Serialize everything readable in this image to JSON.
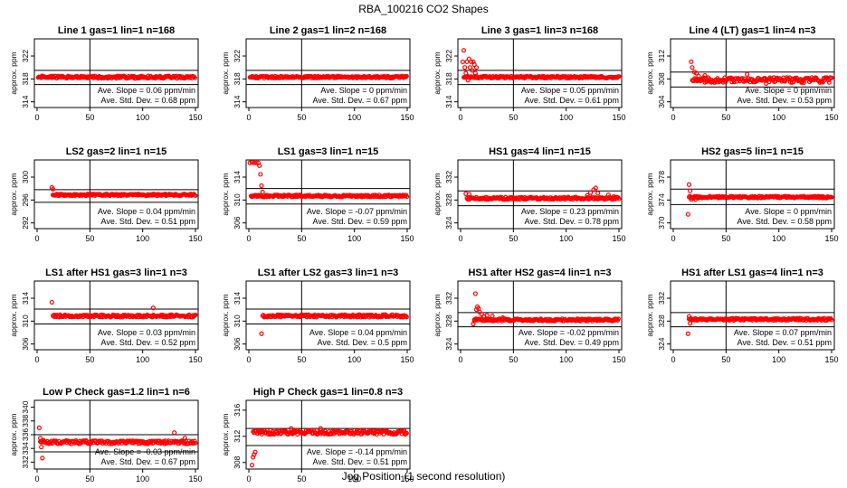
{
  "figure": {
    "title": "RBA_100216  CO2 Shapes",
    "x_title": "Jog Position (1 second resolution)"
  },
  "chart_data": [
    {
      "type": "scatter",
      "title": "Line 1 gas=1 lin=1 n=168",
      "ylabel": "approx. ppm",
      "xlim": [
        0,
        150
      ],
      "ylim": [
        313,
        325
      ],
      "xticks": [
        0,
        50,
        100,
        150
      ],
      "yticks": [
        314,
        318,
        322
      ],
      "hlines": [
        319.5,
        317.0
      ],
      "vline": 50,
      "baseline": 318.3,
      "noise": 0.22,
      "outliers": [],
      "slope_text": "Ave. Slope = 0.06 ppm/min",
      "std_text": "Ave. Std. Dev. = 0.68 ppm"
    },
    {
      "type": "scatter",
      "title": "Line 2 gas=1 lin=2 n=168",
      "ylabel": "approx. ppm",
      "xlim": [
        0,
        150
      ],
      "ylim": [
        313,
        325
      ],
      "xticks": [
        0,
        50,
        100,
        150
      ],
      "yticks": [
        314,
        318,
        322
      ],
      "hlines": [
        319.5,
        317.0
      ],
      "vline": 50,
      "baseline": 318.3,
      "noise": 0.18,
      "outliers": [],
      "slope_text": "Ave. Slope = 0 ppm/min",
      "std_text": "Ave. Std. Dev. = 0.67 ppm"
    },
    {
      "type": "scatter",
      "title": "Line 3 gas=1 lin=3 n=168",
      "ylabel": "approx. ppm",
      "xlim": [
        0,
        150
      ],
      "ylim": [
        313,
        325
      ],
      "xticks": [
        0,
        50,
        100,
        150
      ],
      "yticks": [
        314,
        318,
        322
      ],
      "hlines": [
        319.5,
        317.0
      ],
      "vline": 50,
      "baseline": 318.3,
      "noise": 0.18,
      "outliers": [
        [
          2,
          321
        ],
        [
          3,
          323
        ],
        [
          4,
          320
        ],
        [
          5,
          319
        ],
        [
          6,
          321
        ],
        [
          7,
          317.8
        ],
        [
          8,
          321.5
        ],
        [
          9,
          320
        ],
        [
          10,
          321
        ],
        [
          11,
          319.5
        ],
        [
          12,
          321
        ],
        [
          13,
          320.5
        ],
        [
          14,
          319
        ],
        [
          15,
          320
        ]
      ],
      "slope_text": "Ave. Slope = 0.05 ppm/min",
      "std_text": "Ave. Std. Dev. = 0.61 ppm"
    },
    {
      "type": "scatter",
      "title": "Line 4 (LT) gas=1 lin=4 n=3",
      "ylabel": "approx. ppm",
      "xlim": [
        0,
        150
      ],
      "ylim": [
        303,
        315
      ],
      "xticks": [
        0,
        50,
        100,
        150
      ],
      "yticks": [
        304,
        308,
        312
      ],
      "hlines": [
        309.2,
        306.6
      ],
      "vline": 50,
      "baseline": 307.8,
      "noise": 0.45,
      "outliers": [
        [
          17,
          311
        ],
        [
          18,
          310
        ],
        [
          20,
          309.2
        ],
        [
          22,
          309
        ],
        [
          24,
          308.5
        ],
        [
          30,
          308.6
        ],
        [
          70,
          308.8
        ],
        [
          88,
          307.2
        ]
      ],
      "slope_text": "Ave. Slope = 0 ppm/min",
      "std_text": "Ave. Std. Dev. = 0.53 ppm"
    },
    {
      "type": "scatter",
      "title": "LS2 gas=2 lin=1 n=15",
      "ylabel": "approx. ppm",
      "xlim": [
        0,
        150
      ],
      "ylim": [
        291,
        303
      ],
      "xticks": [
        0,
        50,
        100,
        150
      ],
      "yticks": [
        292,
        296,
        300
      ],
      "hlines": [
        297.8,
        295.6
      ],
      "vline": 50,
      "baseline": 296.9,
      "noise": 0.16,
      "outliers": [
        [
          14,
          298.2
        ],
        [
          15,
          297.9
        ]
      ],
      "slope_text": "Ave. Slope = 0.04 ppm/min",
      "std_text": "Ave. Std. Dev. = 0.51 ppm"
    },
    {
      "type": "scatter",
      "title": "LS1 gas=3 lin=1 n=15",
      "ylabel": "approx. ppm",
      "xlim": [
        0,
        150
      ],
      "ylim": [
        305,
        317
      ],
      "xticks": [
        0,
        50,
        100,
        150
      ],
      "yticks": [
        306,
        310,
        314
      ],
      "hlines": [
        312,
        309.3
      ],
      "vline": 50,
      "baseline": 310.7,
      "noise": 0.18,
      "outliers": [
        [
          1,
          316.5
        ],
        [
          3,
          316.6
        ],
        [
          5,
          316.5
        ],
        [
          7,
          316.5
        ],
        [
          9,
          316.5
        ],
        [
          10,
          316.0
        ],
        [
          11,
          314.5
        ],
        [
          12,
          312.5
        ],
        [
          13,
          311.4
        ]
      ],
      "slope_text": "Ave. Slope = -0.07 ppm/min",
      "std_text": "Ave. Std. Dev. = 0.59 ppm"
    },
    {
      "type": "scatter",
      "title": "HS1 gas=4 lin=1 n=15",
      "ylabel": "approx. ppm",
      "xlim": [
        0,
        150
      ],
      "ylim": [
        323,
        335
      ],
      "xticks": [
        0,
        50,
        100,
        150
      ],
      "yticks": [
        324,
        328,
        332
      ],
      "hlines": [
        329.6,
        327.0
      ],
      "vline": 50,
      "baseline": 328.3,
      "noise": 0.22,
      "outliers": [
        [
          5,
          329.1
        ],
        [
          8,
          329
        ],
        [
          120,
          328.8
        ],
        [
          123,
          329.3
        ],
        [
          126,
          329.8
        ],
        [
          128,
          330.1
        ],
        [
          130,
          329.2
        ],
        [
          140,
          328.9
        ],
        [
          145,
          328.6
        ]
      ],
      "slope_text": "Ave. Slope = 0.23 ppm/min",
      "std_text": "Ave. Std. Dev. = 0.78 ppm"
    },
    {
      "type": "scatter",
      "title": "HS2 gas=5 lin=1 n=15",
      "ylabel": "approx. ppm",
      "xlim": [
        0,
        150
      ],
      "ylim": [
        369,
        381
      ],
      "xticks": [
        0,
        50,
        100,
        150
      ],
      "yticks": [
        370,
        374,
        378
      ],
      "hlines": [
        375.9,
        373.2
      ],
      "vline": 50,
      "baseline": 374.5,
      "noise": 0.17,
      "outliers": [
        [
          14,
          371.5
        ],
        [
          15,
          376.7
        ],
        [
          16,
          375.6
        ],
        [
          17,
          374.1
        ],
        [
          19,
          374.3
        ],
        [
          21,
          374.1
        ]
      ],
      "slope_text": "Ave. Slope = 0 ppm/min",
      "std_text": "Ave. Std. Dev. = 0.58 ppm"
    },
    {
      "type": "scatter",
      "title": "LS1 after HS1 gas=3 lin=1 n=3",
      "ylabel": "approx. ppm",
      "xlim": [
        0,
        150
      ],
      "ylim": [
        305,
        317
      ],
      "xticks": [
        0,
        50,
        100,
        150
      ],
      "yticks": [
        306,
        310,
        314
      ],
      "hlines": [
        312.1,
        309.5
      ],
      "vline": 50,
      "baseline": 310.9,
      "noise": 0.22,
      "outliers": [
        [
          14,
          313.3
        ],
        [
          110,
          312.3
        ]
      ],
      "slope_text": "Ave. Slope = 0.03 ppm/min",
      "std_text": "Ave. Std. Dev. = 0.52 ppm"
    },
    {
      "type": "scatter",
      "title": "LS1 after LS2 gas=3 lin=1 n=3",
      "ylabel": "approx. ppm",
      "xlim": [
        0,
        150
      ],
      "ylim": [
        305,
        317
      ],
      "xticks": [
        0,
        50,
        100,
        150
      ],
      "yticks": [
        306,
        310,
        314
      ],
      "hlines": [
        312.1,
        309.5
      ],
      "vline": 50,
      "baseline": 310.9,
      "noise": 0.24,
      "outliers": [
        [
          12,
          307.8
        ]
      ],
      "slope_text": "Ave. Slope = 0.04 ppm/min",
      "std_text": "Ave. Std. Dev. = 0.5 ppm"
    },
    {
      "type": "scatter",
      "title": "HS1 after HS2 gas=4 lin=1 n=3",
      "ylabel": "approx. ppm",
      "xlim": [
        0,
        150
      ],
      "ylim": [
        323,
        335
      ],
      "xticks": [
        0,
        50,
        100,
        150
      ],
      "yticks": [
        324,
        328,
        332
      ],
      "hlines": [
        329.5,
        327.0
      ],
      "vline": 50,
      "baseline": 328.2,
      "noise": 0.22,
      "outliers": [
        [
          12,
          327.5
        ],
        [
          13,
          328
        ],
        [
          14,
          332.8
        ],
        [
          15,
          330
        ],
        [
          16,
          330.5
        ],
        [
          17,
          330.2
        ],
        [
          18,
          329.6
        ],
        [
          20,
          329.2
        ],
        [
          22,
          328.8
        ],
        [
          25,
          329
        ],
        [
          30,
          328.9
        ],
        [
          40,
          328.6
        ]
      ],
      "slope_text": "Ave. Slope = -0.02 ppm/min",
      "std_text": "Ave. Std. Dev. = 0.49 ppm"
    },
    {
      "type": "scatter",
      "title": "HS1 after LS1 gas=4 lin=1 n=3",
      "ylabel": "approx. ppm",
      "xlim": [
        0,
        150
      ],
      "ylim": [
        323,
        335
      ],
      "xticks": [
        0,
        50,
        100,
        150
      ],
      "yticks": [
        324,
        328,
        332
      ],
      "hlines": [
        329.5,
        327.0
      ],
      "vline": 50,
      "baseline": 328.3,
      "noise": 0.2,
      "outliers": [
        [
          14,
          325.8
        ],
        [
          15,
          328.8
        ],
        [
          16,
          327.6
        ]
      ],
      "slope_text": "Ave. Slope = 0.07 ppm/min",
      "std_text": "Ave. Std. Dev. = 0.51 ppm"
    },
    {
      "type": "scatter",
      "title": "Low P Check gas=1.2 lin=1 n=6",
      "ylabel": "approx. ppm",
      "xlim": [
        0,
        150
      ],
      "ylim": [
        331,
        341
      ],
      "xticks": [
        0,
        50,
        100,
        150
      ],
      "yticks": [
        332,
        334,
        336,
        338,
        340
      ],
      "hlines": [
        336.0,
        333.5
      ],
      "vline": 50,
      "baseline": 334.9,
      "noise": 0.25,
      "outliers": [
        [
          2,
          337
        ],
        [
          3,
          335.5
        ],
        [
          4,
          334.2
        ],
        [
          5,
          332.6
        ],
        [
          6,
          335.2
        ],
        [
          130,
          336.3
        ],
        [
          140,
          335.5
        ]
      ],
      "slope_text": "Ave. Slope = -0.03 ppm/min",
      "std_text": "Ave. Std. Dev. = 0.67 ppm"
    },
    {
      "type": "scatter",
      "title": "High P Check gas=1 lin=0.8 n=3",
      "ylabel": "approx. ppm",
      "xlim": [
        0,
        150
      ],
      "ylim": [
        307,
        317.5
      ],
      "xticks": [
        0,
        50,
        100,
        150
      ],
      "yticks": [
        308,
        312,
        316
      ],
      "hlines": [
        313.2,
        310.6
      ],
      "vline": 50,
      "baseline": 312.6,
      "noise": 0.32,
      "outliers": [
        [
          3,
          307.6
        ],
        [
          4,
          308.8
        ],
        [
          5,
          309.2
        ],
        [
          6,
          309.6
        ],
        [
          40,
          313.2
        ],
        [
          68,
          313.2
        ]
      ],
      "slope_text": "Ave. Slope = -0.14 ppm/min",
      "std_text": "Ave. Std. Dev. = 0.51 ppm"
    }
  ]
}
